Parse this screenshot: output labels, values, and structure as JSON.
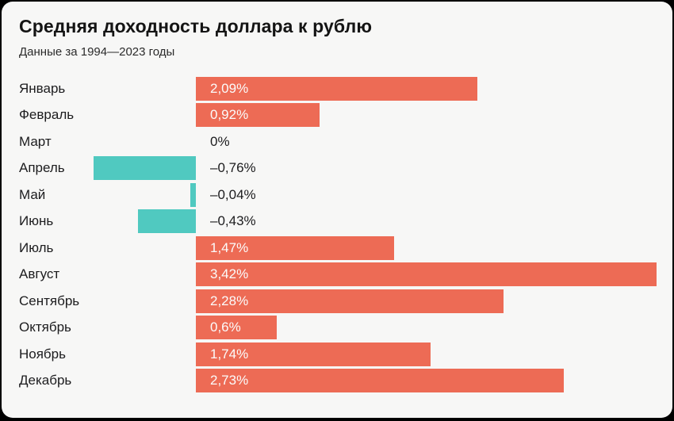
{
  "card": {
    "title": "Средняя доходность доллара к рублю",
    "subtitle": "Данные за 1994—2023 годы"
  },
  "chart_data": {
    "type": "bar",
    "orientation": "horizontal",
    "title": "Средняя доходность доллара к рублю",
    "subtitle": "Данные за 1994—2023 годы",
    "categories": [
      "Январь",
      "Февраль",
      "Март",
      "Апрель",
      "Май",
      "Июнь",
      "Июль",
      "Август",
      "Сентябрь",
      "Октябрь",
      "Ноябрь",
      "Декабрь"
    ],
    "category_slugs": [
      "january",
      "february",
      "march",
      "april",
      "may",
      "june",
      "july",
      "august",
      "september",
      "october",
      "november",
      "december"
    ],
    "values": [
      2.09,
      0.92,
      0,
      -0.76,
      -0.04,
      -0.43,
      1.47,
      3.42,
      2.28,
      0.6,
      1.74,
      2.73
    ],
    "value_labels": [
      "2,09%",
      "0,92%",
      "0%",
      "–0,76%",
      "–0,04%",
      "–0,43%",
      "1,47%",
      "3,42%",
      "2,28%",
      "0,6%",
      "1,74%",
      "2,73%"
    ],
    "xlim": [
      -0.9,
      3.54
    ],
    "unit": "%",
    "grid": false,
    "legend": false,
    "colors": {
      "positive": "#ED6B55",
      "negative": "#50C9C0",
      "card_background": "#F7F7F6",
      "page_background": "#000000",
      "text": "#1c1c1e",
      "value_label_inside": "#FBFBFB"
    },
    "value_label_placement": {
      "positive": "inside-left",
      "zero_or_negative": "right-of-baseline"
    }
  }
}
